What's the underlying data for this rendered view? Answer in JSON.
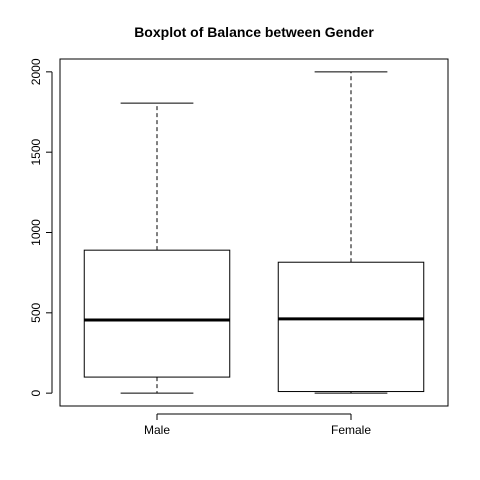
{
  "chart_data": {
    "type": "boxplot",
    "title": "Boxplot of Balance between Gender",
    "xlabel": "",
    "ylabel": "",
    "categories": [
      "Male",
      "Female"
    ],
    "boxes": [
      {
        "category": "Male",
        "whisker_low": 0,
        "q1": 100,
        "median": 455,
        "q3": 890,
        "whisker_high": 1805
      },
      {
        "category": "Female",
        "whisker_low": 0,
        "q1": 10,
        "median": 462,
        "q3": 815,
        "whisker_high": 2000
      }
    ],
    "ylim": [
      -80,
      2080
    ],
    "yticks": [
      0,
      500,
      1000,
      1500,
      2000
    ],
    "ytick_labels": [
      "0",
      "500",
      "1000",
      "1500",
      "2000"
    ],
    "grid": false,
    "legend": "none"
  }
}
